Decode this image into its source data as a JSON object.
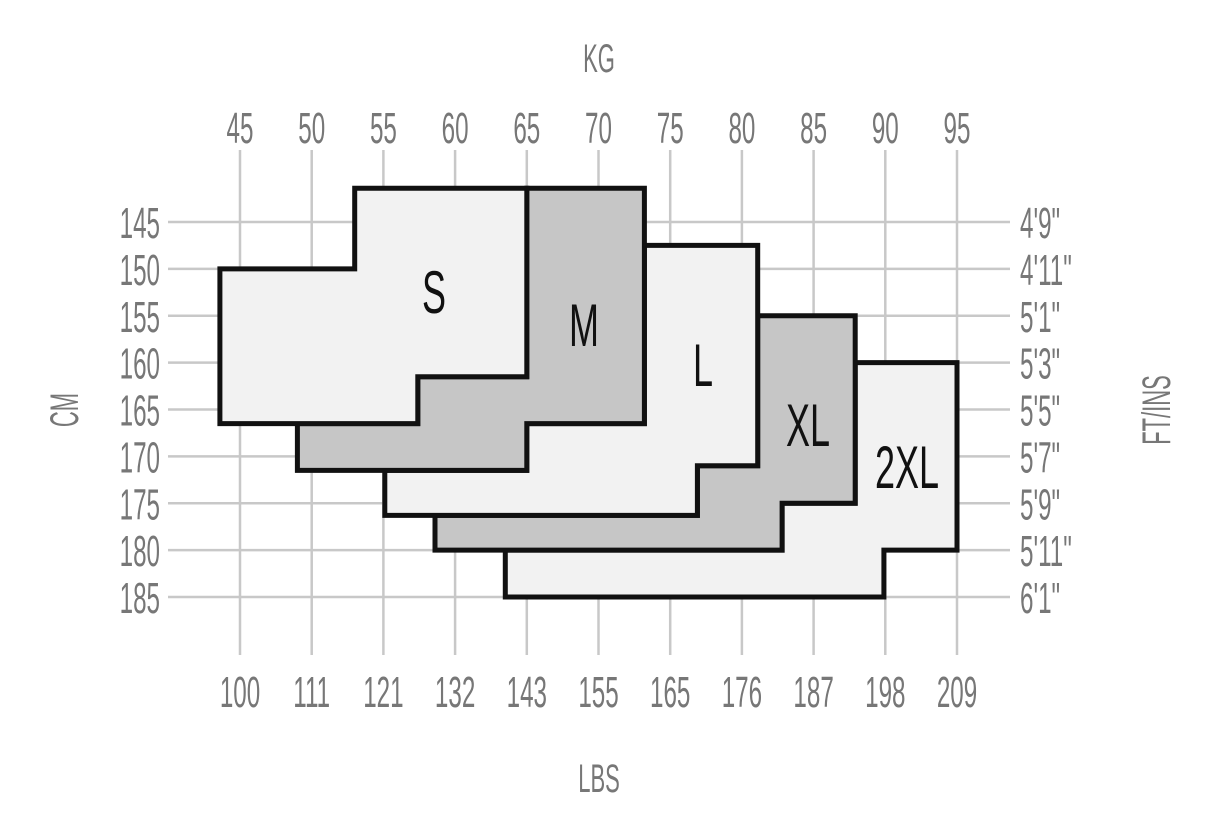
{
  "chart_data": {
    "type": "size-chart",
    "top_axis": {
      "title": "KG",
      "ticks": [
        "45",
        "50",
        "55",
        "60",
        "65",
        "70",
        "75",
        "80",
        "85",
        "90",
        "95"
      ],
      "range": [
        45,
        95
      ]
    },
    "bottom_axis": {
      "title": "LBS",
      "ticks": [
        "100",
        "111",
        "121",
        "132",
        "143",
        "155",
        "165",
        "176",
        "187",
        "198",
        "209"
      ]
    },
    "left_axis": {
      "title": "CM",
      "ticks": [
        "145",
        "150",
        "155",
        "160",
        "165",
        "170",
        "175",
        "180",
        "185"
      ],
      "range": [
        145,
        185
      ]
    },
    "right_axis": {
      "title": "FT/INS",
      "ticks": [
        "4'9\"",
        "4'11\"",
        "5'1\"",
        "5'3\"",
        "5'5\"",
        "5'7\"",
        "5'9\"",
        "5'11\"",
        "6'1\""
      ]
    },
    "grid": true,
    "colors": {
      "grid": "#c8c8c8",
      "light_fill": "#f2f2f2",
      "dark_fill": "#c6c6c6",
      "outline": "#111111",
      "tick_text": "#777777"
    },
    "sizes": [
      {
        "label": "2XL",
        "fill": "#f2f2f2",
        "points_kg_cm": [
          [
            87.9,
            160
          ],
          [
            95,
            160
          ],
          [
            95,
            180
          ],
          [
            89.9,
            180
          ],
          [
            89.9,
            185
          ],
          [
            63.5,
            185
          ],
          [
            63.5,
            180
          ],
          [
            82.8,
            180
          ],
          [
            82.8,
            175
          ],
          [
            87.9,
            175
          ]
        ]
      },
      {
        "label": "XL",
        "fill": "#c6c6c6",
        "points_kg_cm": [
          [
            81.1,
            155
          ],
          [
            87.9,
            155
          ],
          [
            87.9,
            175
          ],
          [
            82.8,
            175
          ],
          [
            82.8,
            180
          ],
          [
            58.6,
            180
          ],
          [
            58.6,
            176.3
          ],
          [
            76.9,
            176.3
          ],
          [
            76.9,
            171
          ],
          [
            81.1,
            171
          ]
        ]
      },
      {
        "label": "L",
        "fill": "#f2f2f2",
        "points_kg_cm": [
          [
            73.2,
            147.5
          ],
          [
            81.1,
            147.5
          ],
          [
            81.1,
            171
          ],
          [
            76.9,
            171
          ],
          [
            76.9,
            176.3
          ],
          [
            55.1,
            176.3
          ],
          [
            55.1,
            171.5
          ],
          [
            65,
            171.5
          ],
          [
            65,
            166.5
          ],
          [
            73.2,
            166.5
          ]
        ]
      },
      {
        "label": "M",
        "fill": "#c6c6c6",
        "points_kg_cm": [
          [
            57.4,
            161.5
          ],
          [
            65,
            161.5
          ],
          [
            65,
            141.4
          ],
          [
            73.2,
            141.4
          ],
          [
            73.2,
            166.5
          ],
          [
            65,
            166.5
          ],
          [
            65,
            171.5
          ],
          [
            49,
            171.5
          ],
          [
            49,
            166.5
          ],
          [
            57.4,
            166.5
          ]
        ]
      },
      {
        "label": "S",
        "fill": "#f2f2f2",
        "points_kg_cm": [
          [
            53,
            141.4
          ],
          [
            65,
            141.4
          ],
          [
            65,
            161.5
          ],
          [
            57.4,
            161.5
          ],
          [
            57.4,
            166.5
          ],
          [
            43.6,
            166.5
          ],
          [
            43.6,
            150
          ],
          [
            53,
            150
          ]
        ]
      }
    ]
  }
}
